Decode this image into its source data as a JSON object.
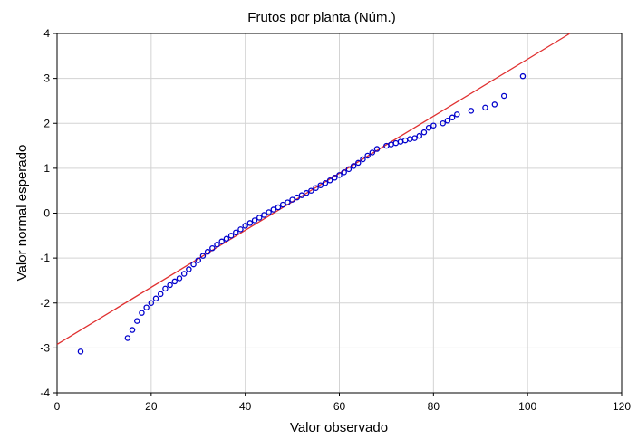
{
  "chart_data": {
    "type": "scatter",
    "title": "Frutos por planta (Núm.)",
    "xlabel": "Valor observado",
    "ylabel": "Valor normal esperado",
    "xlim": [
      0,
      120
    ],
    "ylim": [
      -4,
      4
    ],
    "xticks": [
      "0",
      "20",
      "40",
      "60",
      "80",
      "100",
      "120"
    ],
    "yticks": [
      "-4",
      "-3",
      "-2",
      "-1",
      "0",
      "1",
      "2",
      "3",
      "4"
    ],
    "grid": true,
    "legend": "none",
    "reference_line": {
      "from": [
        0,
        -2.92
      ],
      "to": [
        109,
        4.0
      ],
      "color": "#e03030"
    },
    "marker_color": "#0000cc",
    "series": [
      {
        "x": [
          5,
          15,
          16,
          17,
          18,
          19,
          20,
          21,
          22,
          23,
          24,
          25,
          26,
          27,
          28,
          29,
          30,
          31,
          32,
          33,
          34,
          35,
          36,
          37,
          38,
          39,
          40,
          41,
          42,
          43,
          44,
          45,
          46,
          47,
          48,
          49,
          50,
          51,
          52,
          53,
          54,
          55,
          56,
          57,
          58,
          59,
          60,
          61,
          62,
          63,
          64,
          65,
          66,
          67,
          68,
          70,
          71,
          72,
          73,
          74,
          75,
          76,
          77,
          78,
          79,
          80,
          82,
          83,
          84,
          85,
          88,
          91,
          93,
          95,
          99
        ],
        "y": [
          -3.08,
          -2.78,
          -2.6,
          -2.4,
          -2.22,
          -2.1,
          -2.0,
          -1.9,
          -1.8,
          -1.68,
          -1.6,
          -1.52,
          -1.45,
          -1.35,
          -1.25,
          -1.14,
          -1.05,
          -0.95,
          -0.86,
          -0.78,
          -0.7,
          -0.63,
          -0.57,
          -0.5,
          -0.43,
          -0.36,
          -0.28,
          -0.22,
          -0.16,
          -0.1,
          -0.04,
          0.02,
          0.08,
          0.13,
          0.19,
          0.24,
          0.3,
          0.35,
          0.4,
          0.45,
          0.5,
          0.56,
          0.62,
          0.67,
          0.73,
          0.79,
          0.85,
          0.91,
          0.98,
          1.05,
          1.12,
          1.2,
          1.28,
          1.35,
          1.43,
          1.5,
          1.53,
          1.56,
          1.59,
          1.62,
          1.65,
          1.67,
          1.72,
          1.8,
          1.9,
          1.95,
          2.0,
          2.06,
          2.13,
          2.2,
          2.28,
          2.35,
          2.42,
          2.61,
          3.05
        ]
      }
    ]
  }
}
